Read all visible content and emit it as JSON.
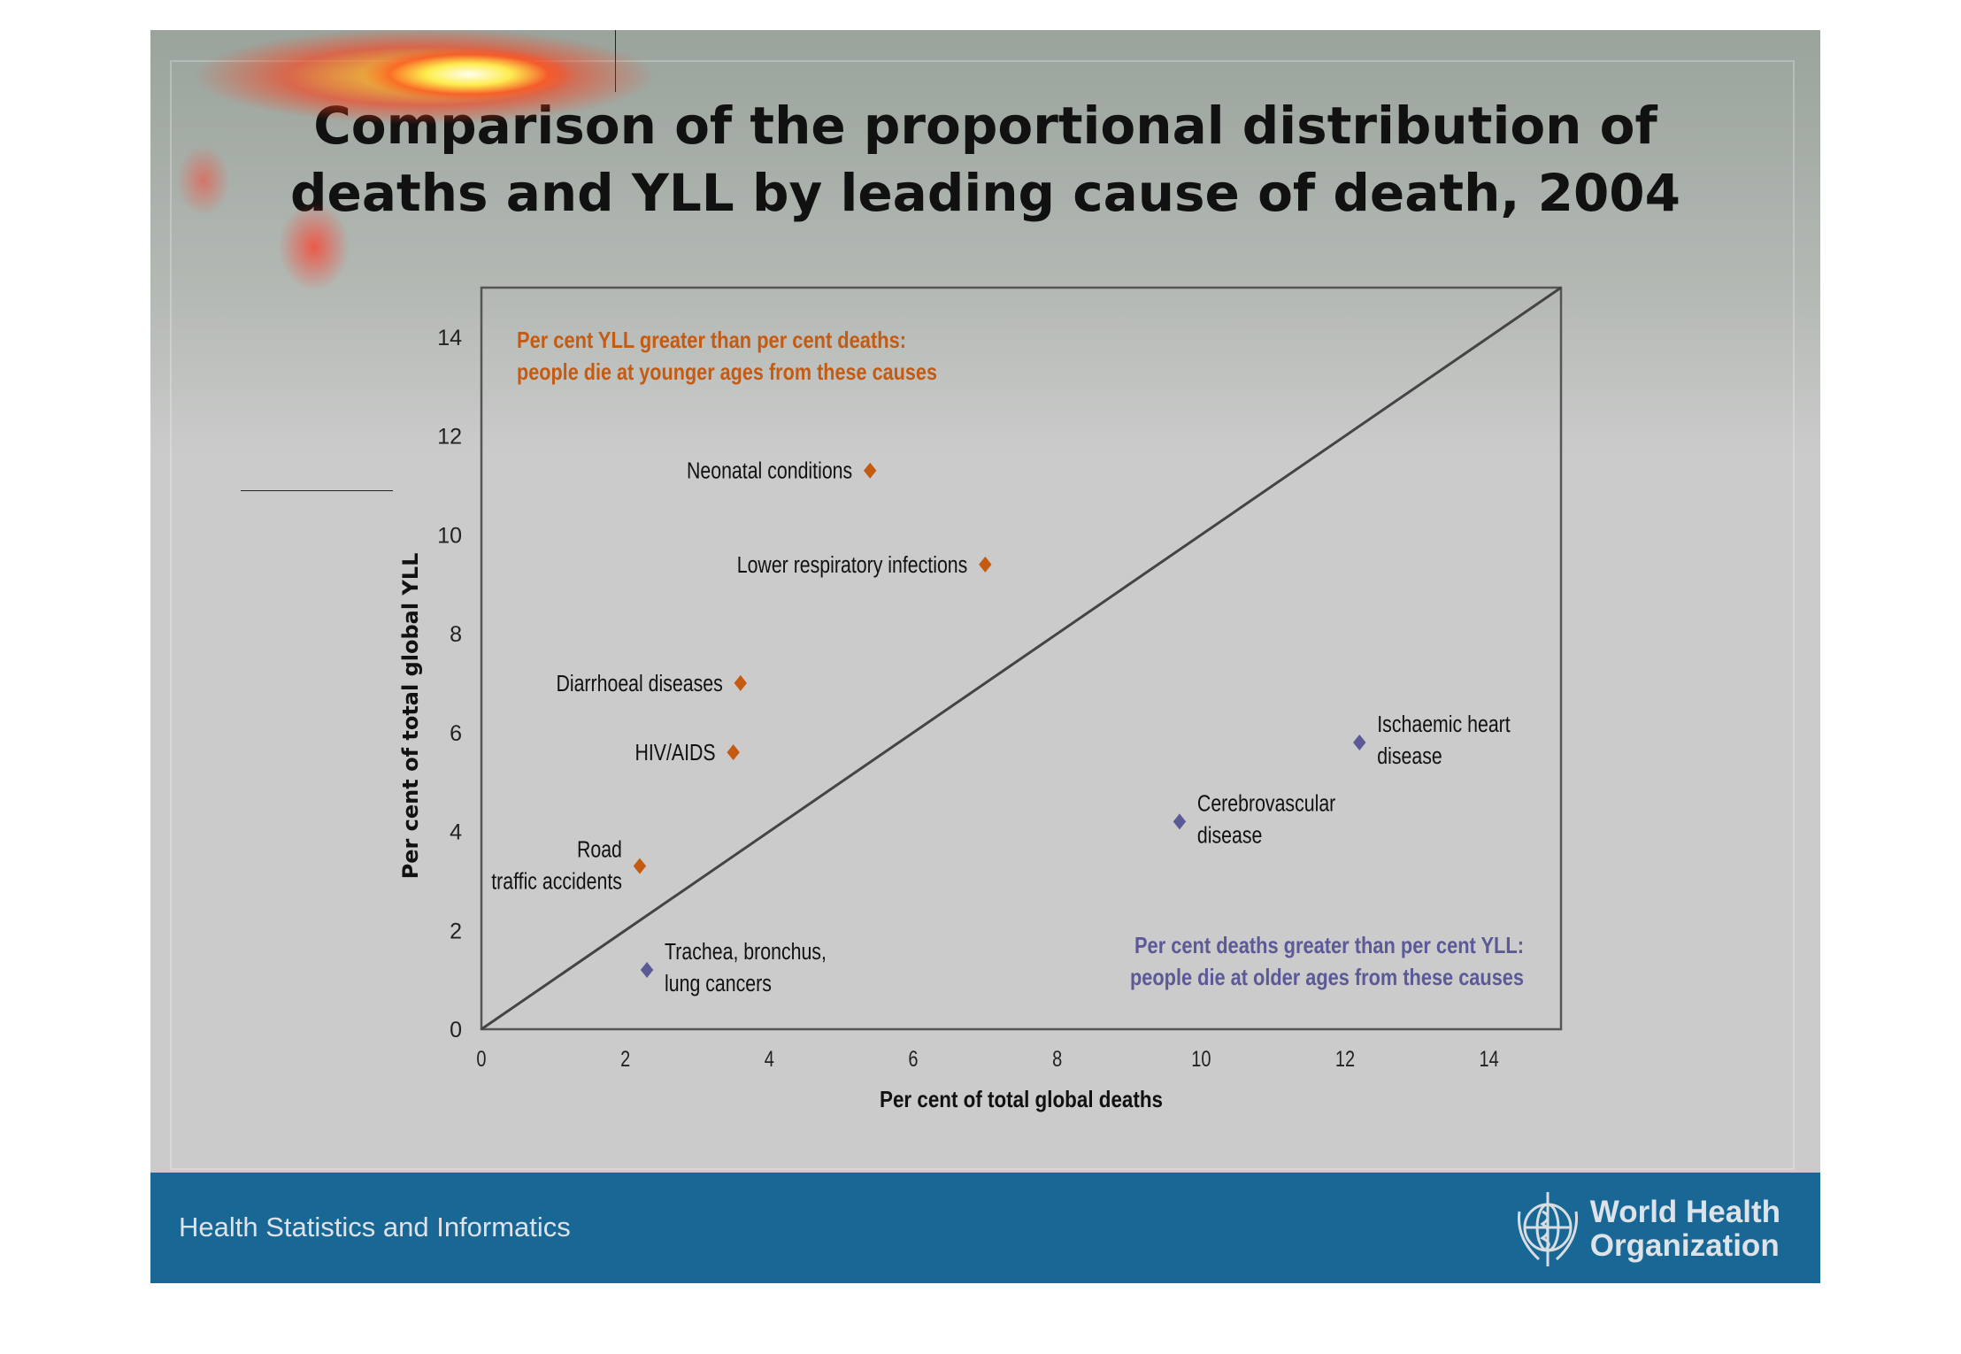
{
  "slide": {
    "title_line1": "Comparison of the proportional distribution of",
    "title_line2": "deaths and YLL by leading cause of death, 2004",
    "footer_text": "Health Statistics and Informatics",
    "logo_text_line1": "World Health",
    "logo_text_line2": "Organization"
  },
  "chart_data": {
    "type": "scatter",
    "title": "Comparison of the proportional distribution of deaths and YLL by leading cause of death, 2004",
    "xlabel": "Per cent of total global deaths",
    "ylabel": "Per cent of total global YLL",
    "xlim": [
      0,
      15
    ],
    "ylim": [
      0,
      15
    ],
    "xticks": [
      0,
      2,
      4,
      6,
      8,
      10,
      12,
      14
    ],
    "yticks": [
      0,
      2,
      4,
      6,
      8,
      10,
      12,
      14
    ],
    "grid": false,
    "reference_line": "y = x",
    "annotations": {
      "upper": [
        "Per cent YLL greater than per cent deaths:",
        "people die at younger ages from these causes"
      ],
      "lower": [
        "Per cent deaths greater than per cent YLL:",
        "people die at older ages from these causes"
      ]
    },
    "colors": {
      "younger": "#c55a11",
      "older": "#5b5a96",
      "line": "#444444"
    },
    "points": [
      {
        "label": [
          "Neonatal conditions"
        ],
        "x": 5.4,
        "y": 11.3,
        "group": "younger",
        "label_side": "left"
      },
      {
        "label": [
          "Lower respiratory infections"
        ],
        "x": 7.0,
        "y": 9.4,
        "group": "younger",
        "label_side": "left"
      },
      {
        "label": [
          "Diarrhoeal diseases"
        ],
        "x": 3.6,
        "y": 7.0,
        "group": "younger",
        "label_side": "left"
      },
      {
        "label": [
          "HIV/AIDS"
        ],
        "x": 3.5,
        "y": 5.6,
        "group": "younger",
        "label_side": "left"
      },
      {
        "label": [
          "Road",
          "traffic accidents"
        ],
        "x": 2.2,
        "y": 3.3,
        "group": "younger",
        "label_side": "left"
      },
      {
        "label": [
          "Trachea, bronchus,",
          "lung cancers"
        ],
        "x": 2.3,
        "y": 1.2,
        "group": "older",
        "label_side": "right"
      },
      {
        "label": [
          "Cerebrovascular",
          "disease"
        ],
        "x": 9.7,
        "y": 4.2,
        "group": "older",
        "label_side": "right"
      },
      {
        "label": [
          "Ischaemic heart",
          "disease"
        ],
        "x": 12.2,
        "y": 5.8,
        "group": "older",
        "label_side": "right"
      }
    ]
  }
}
